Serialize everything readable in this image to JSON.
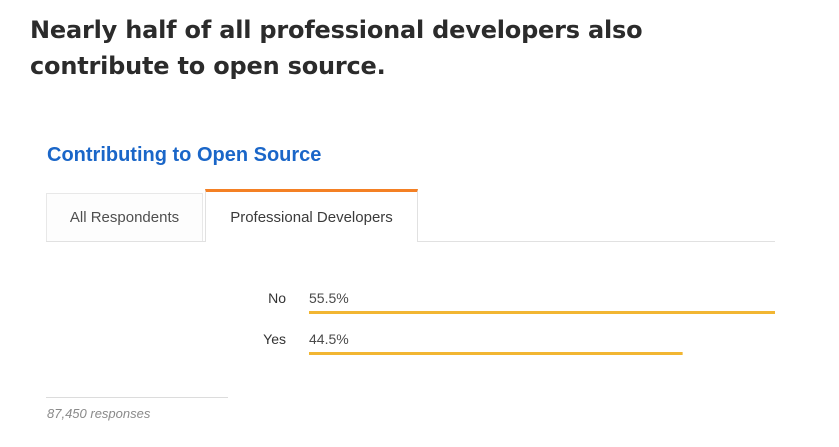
{
  "headline": "Nearly half of all professional developers also contribute to open source.",
  "card": {
    "title": "Contributing to Open Source",
    "tabs": [
      "All Respondents",
      "Professional Developers"
    ],
    "active_tab": "Professional Developers",
    "responses": "87,450 responses"
  },
  "colors": {
    "title": "#1a66c8",
    "active_tab_accent": "#f48024",
    "bar": "#f2b632"
  },
  "chart_data": {
    "type": "bar",
    "orientation": "horizontal",
    "categories": [
      "No",
      "Yes"
    ],
    "values": [
      55.5,
      44.5
    ],
    "value_labels": [
      "55.5%",
      "44.5%"
    ],
    "unit": "%",
    "title": "",
    "xlabel": "",
    "ylabel": "",
    "grid": false
  }
}
